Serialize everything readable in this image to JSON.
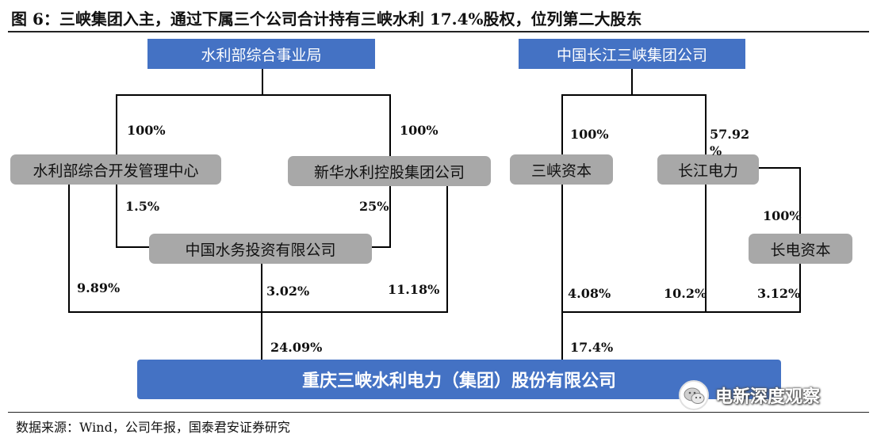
{
  "title": "图 6：三峡集团入主，通过下属三个公司合计持有三峡水利 17.4%股权，位列第二大股东",
  "entities": {
    "mwr_bureau": "水利部综合事业局",
    "ctg": "中国长江三峡集团公司",
    "mwr_dev_center": "水利部综合开发管理中心",
    "xinhua_water": "新华水利控股集团公司",
    "three_gorges_capital": "三峡资本",
    "cypc": "长江电力",
    "china_water_invest": "中国水务投资有限公司",
    "cypc_capital": "长电资本",
    "target": "重庆三峡水利电力（集团）股份有限公司"
  },
  "percentages": {
    "bureau_to_center": "100%",
    "bureau_to_xinhua": "100%",
    "center_to_water": "1.5%",
    "xinhua_to_water": "25%",
    "center_to_target": "9.89%",
    "water_to_target": "3.02%",
    "xinhua_to_target": "11.18%",
    "left_total": "24.09%",
    "ctg_to_capital": "100%",
    "ctg_to_cypc_line1": "57.92",
    "ctg_to_cypc_line2": "%",
    "cypc_to_cypc_capital": "100%",
    "capital_to_target": "4.08%",
    "cypc_to_target": "10.2%",
    "cypc_capital_to_target": "3.12%",
    "right_total": "17.4%"
  },
  "source": "数据来源：Wind，公司年报，国泰君安证券研究",
  "watermark": "电新深度观察",
  "colors": {
    "blue_box": "#4472c4",
    "gray_box": "#a8a8a8",
    "line": "#000000"
  }
}
